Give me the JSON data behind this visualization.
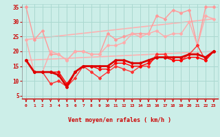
{
  "xlabel": "Vent moyen/en rafales ( km/h )",
  "bg_color": "#cceee8",
  "grid_color": "#aad8d0",
  "xlim": [
    -0.5,
    23.5
  ],
  "ylim": [
    4,
    36
  ],
  "yticks": [
    5,
    10,
    15,
    20,
    25,
    30,
    35
  ],
  "xticks": [
    0,
    1,
    2,
    3,
    4,
    5,
    6,
    7,
    8,
    9,
    10,
    11,
    12,
    13,
    14,
    15,
    16,
    17,
    18,
    19,
    20,
    21,
    22,
    23
  ],
  "series": [
    {
      "label": "pink_top_jagged",
      "x": [
        0,
        1,
        2,
        3,
        4,
        5,
        6,
        7,
        8,
        9,
        10,
        11,
        12,
        13,
        14,
        15,
        16,
        17,
        18,
        19,
        20,
        21,
        22,
        23
      ],
      "y": [
        35,
        24,
        27,
        19,
        19,
        17,
        20,
        20,
        19,
        19,
        26,
        24,
        25,
        26,
        26,
        26,
        32,
        31,
        34,
        33,
        34,
        22,
        35,
        35
      ],
      "color": "#ff9999",
      "lw": 1.0,
      "marker": "D",
      "ms": 2.0,
      "zorder": 2
    },
    {
      "label": "pink_trend_top",
      "x": [
        0,
        23
      ],
      "y": [
        24,
        31
      ],
      "color": "#ffb0b0",
      "lw": 1.2,
      "marker": null,
      "ms": 0,
      "zorder": 1
    },
    {
      "label": "pink_trend_bottom",
      "x": [
        0,
        23
      ],
      "y": [
        17,
        20
      ],
      "color": "#ffb0b0",
      "lw": 1.2,
      "marker": null,
      "ms": 0,
      "zorder": 1
    },
    {
      "label": "pink_mid_jagged",
      "x": [
        0,
        1,
        2,
        3,
        4,
        5,
        6,
        7,
        8,
        9,
        10,
        11,
        12,
        13,
        14,
        15,
        16,
        17,
        18,
        19,
        20,
        21,
        22,
        23
      ],
      "y": [
        24,
        13,
        13,
        20,
        19,
        17,
        20,
        20,
        19,
        19,
        22,
        22,
        23,
        26,
        25,
        26,
        27,
        25,
        26,
        26,
        30,
        22,
        32,
        31
      ],
      "color": "#ffaaaa",
      "lw": 1.0,
      "marker": "D",
      "ms": 2.0,
      "zorder": 2
    },
    {
      "label": "red_volatile",
      "x": [
        0,
        1,
        2,
        3,
        4,
        5,
        6,
        7,
        8,
        9,
        10,
        11,
        12,
        13,
        14,
        15,
        16,
        17,
        18,
        19,
        20,
        21,
        22,
        23
      ],
      "y": [
        17,
        13,
        13,
        9,
        10,
        8,
        11,
        15,
        13,
        11,
        13,
        15,
        14,
        13,
        15,
        15,
        19,
        19,
        17,
        17,
        19,
        22,
        17,
        20
      ],
      "color": "#ff3333",
      "lw": 1.0,
      "marker": "D",
      "ms": 2.0,
      "zorder": 3
    },
    {
      "label": "dark_red_thick",
      "x": [
        0,
        1,
        2,
        3,
        4,
        5,
        6,
        7,
        8,
        9,
        10,
        11,
        12,
        13,
        14,
        15,
        16,
        17,
        18,
        19,
        20,
        21,
        22,
        23
      ],
      "y": [
        17,
        13,
        13,
        13,
        12,
        8,
        13,
        15,
        15,
        15,
        15,
        17,
        17,
        16,
        16,
        17,
        18,
        18,
        18,
        18,
        19,
        19,
        18,
        20
      ],
      "color": "#dd0000",
      "lw": 2.0,
      "marker": "D",
      "ms": 2.0,
      "zorder": 4
    },
    {
      "label": "red_smooth",
      "x": [
        0,
        1,
        2,
        3,
        4,
        5,
        6,
        7,
        8,
        9,
        10,
        11,
        12,
        13,
        14,
        15,
        16,
        17,
        18,
        19,
        20,
        21,
        22,
        23
      ],
      "y": [
        17,
        13,
        13,
        13,
        13,
        9,
        13,
        15,
        15,
        14,
        14,
        16,
        16,
        15,
        15,
        16,
        18,
        18,
        17,
        17,
        18,
        18,
        17,
        20
      ],
      "color": "#ff0000",
      "lw": 1.0,
      "marker": "D",
      "ms": 2.0,
      "zorder": 3
    }
  ],
  "arrow_color": "#cc0000",
  "xlabel_color": "#cc0000",
  "tick_color": "#cc0000"
}
